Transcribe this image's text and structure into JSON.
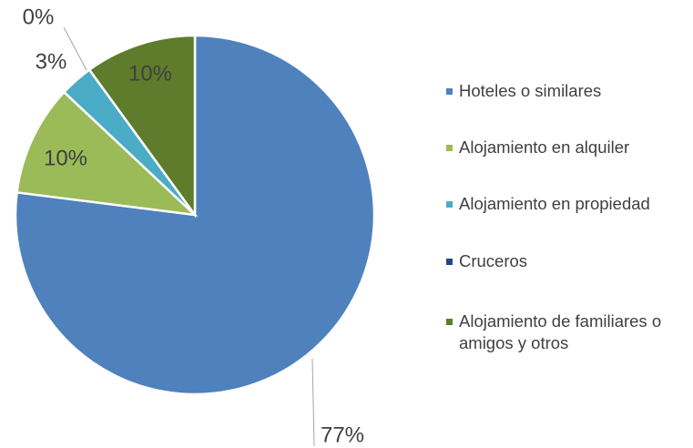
{
  "chart_data": {
    "type": "pie",
    "categories": [
      "Hoteles o similares",
      "Alojamiento en alquiler",
      "Alojamiento en propiedad",
      "Cruceros",
      "Alojamiento de familiares o amigos y otros"
    ],
    "values": [
      77,
      10,
      3,
      0,
      10
    ],
    "value_labels": [
      "77%",
      "10%",
      "3%",
      "0%",
      "10%"
    ],
    "colors": [
      "#4f81bd",
      "#9bbb59",
      "#4bacc6",
      "#1f497d",
      "#5e7c2b"
    ],
    "legend": "right"
  }
}
